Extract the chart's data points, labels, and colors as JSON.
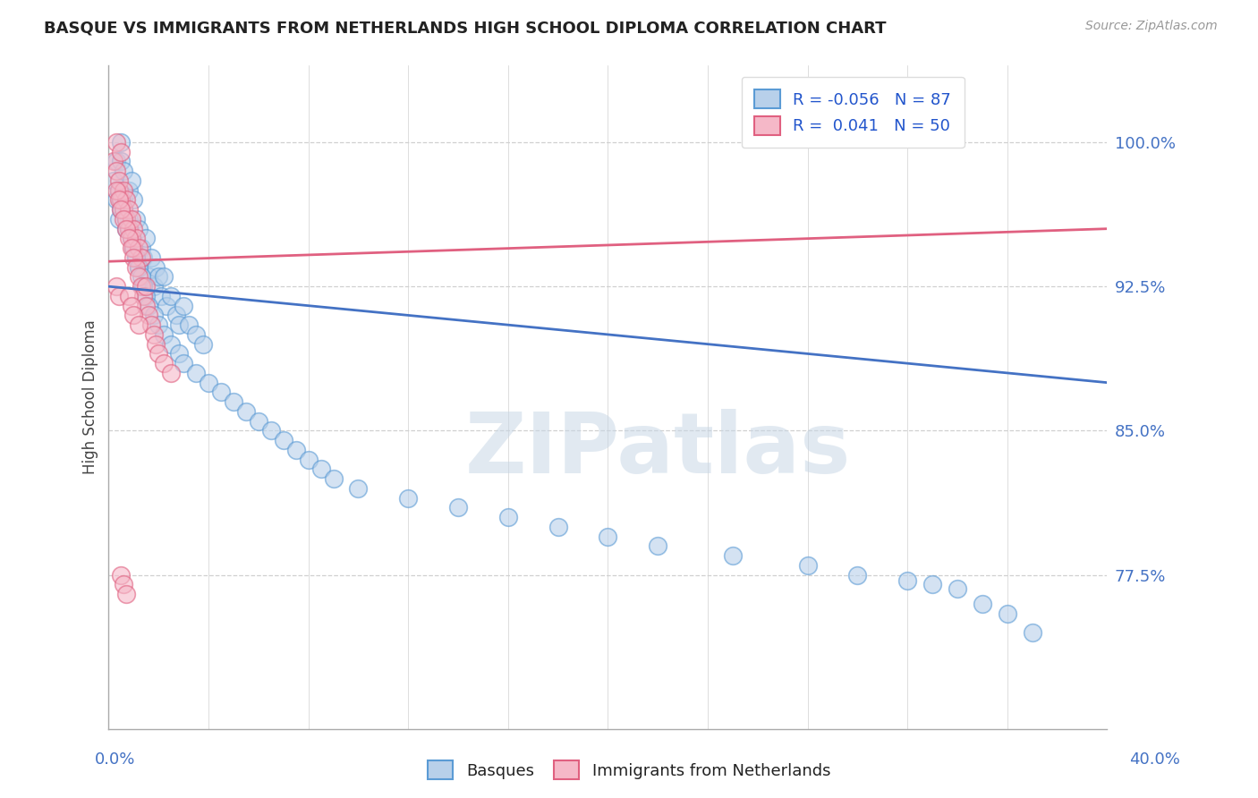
{
  "title": "BASQUE VS IMMIGRANTS FROM NETHERLANDS HIGH SCHOOL DIPLOMA CORRELATION CHART",
  "source": "Source: ZipAtlas.com",
  "ylabel": "High School Diploma",
  "yticks": [
    0.775,
    0.85,
    0.925,
    1.0
  ],
  "ytick_labels": [
    "77.5%",
    "85.0%",
    "92.5%",
    "100.0%"
  ],
  "xmin": 0.0,
  "xmax": 0.4,
  "ymin": 0.695,
  "ymax": 1.04,
  "blue_R": -0.056,
  "blue_N": 87,
  "pink_R": 0.041,
  "pink_N": 50,
  "blue_face_color": "#b8d0ea",
  "pink_face_color": "#f5b8c8",
  "blue_edge_color": "#5b9bd5",
  "pink_edge_color": "#e06080",
  "blue_line_color": "#4472c4",
  "pink_line_color": "#e06080",
  "blue_label": "Basques",
  "pink_label": "Immigrants from Netherlands",
  "watermark": "ZIPatlas",
  "grid_color": "#d0d0d0",
  "title_color": "#222222",
  "axis_tick_color": "#4472c4",
  "ylabel_color": "#444444",
  "legend_color": "#2255cc",
  "blue_scatter_x": [
    0.002,
    0.003,
    0.003,
    0.004,
    0.004,
    0.005,
    0.005,
    0.005,
    0.006,
    0.006,
    0.007,
    0.007,
    0.008,
    0.008,
    0.009,
    0.009,
    0.01,
    0.01,
    0.011,
    0.011,
    0.012,
    0.012,
    0.013,
    0.014,
    0.015,
    0.016,
    0.017,
    0.018,
    0.019,
    0.02,
    0.021,
    0.022,
    0.023,
    0.025,
    0.027,
    0.028,
    0.03,
    0.032,
    0.035,
    0.038,
    0.004,
    0.005,
    0.006,
    0.007,
    0.008,
    0.009,
    0.01,
    0.011,
    0.012,
    0.013,
    0.014,
    0.015,
    0.016,
    0.018,
    0.02,
    0.022,
    0.025,
    0.028,
    0.03,
    0.035,
    0.04,
    0.045,
    0.05,
    0.055,
    0.06,
    0.065,
    0.07,
    0.075,
    0.08,
    0.085,
    0.09,
    0.1,
    0.12,
    0.14,
    0.16,
    0.18,
    0.2,
    0.22,
    0.25,
    0.28,
    0.3,
    0.32,
    0.33,
    0.34,
    0.35,
    0.36,
    0.37
  ],
  "blue_scatter_y": [
    0.98,
    0.97,
    0.99,
    0.96,
    0.975,
    0.99,
    1.0,
    0.965,
    0.985,
    0.97,
    0.96,
    0.955,
    0.975,
    0.96,
    0.98,
    0.95,
    0.97,
    0.945,
    0.96,
    0.94,
    0.955,
    0.935,
    0.945,
    0.94,
    0.95,
    0.93,
    0.94,
    0.925,
    0.935,
    0.93,
    0.92,
    0.93,
    0.915,
    0.92,
    0.91,
    0.905,
    0.915,
    0.905,
    0.9,
    0.895,
    0.975,
    0.97,
    0.965,
    0.96,
    0.955,
    0.95,
    0.945,
    0.94,
    0.935,
    0.93,
    0.925,
    0.92,
    0.915,
    0.91,
    0.905,
    0.9,
    0.895,
    0.89,
    0.885,
    0.88,
    0.875,
    0.87,
    0.865,
    0.86,
    0.855,
    0.85,
    0.845,
    0.84,
    0.835,
    0.83,
    0.825,
    0.82,
    0.815,
    0.81,
    0.805,
    0.8,
    0.795,
    0.79,
    0.785,
    0.78,
    0.775,
    0.772,
    0.77,
    0.768,
    0.76,
    0.755,
    0.745
  ],
  "pink_scatter_x": [
    0.002,
    0.003,
    0.003,
    0.004,
    0.004,
    0.005,
    0.005,
    0.006,
    0.006,
    0.007,
    0.007,
    0.008,
    0.008,
    0.009,
    0.009,
    0.01,
    0.01,
    0.011,
    0.012,
    0.013,
    0.003,
    0.004,
    0.005,
    0.006,
    0.007,
    0.008,
    0.009,
    0.01,
    0.011,
    0.012,
    0.013,
    0.014,
    0.015,
    0.016,
    0.017,
    0.018,
    0.019,
    0.02,
    0.022,
    0.025,
    0.003,
    0.004,
    0.005,
    0.006,
    0.007,
    0.008,
    0.009,
    0.01,
    0.012,
    0.015
  ],
  "pink_scatter_y": [
    0.99,
    0.985,
    1.0,
    0.975,
    0.98,
    0.995,
    0.97,
    0.975,
    0.965,
    0.97,
    0.96,
    0.965,
    0.955,
    0.96,
    0.95,
    0.955,
    0.945,
    0.95,
    0.945,
    0.94,
    0.975,
    0.97,
    0.965,
    0.96,
    0.955,
    0.95,
    0.945,
    0.94,
    0.935,
    0.93,
    0.925,
    0.92,
    0.915,
    0.91,
    0.905,
    0.9,
    0.895,
    0.89,
    0.885,
    0.88,
    0.925,
    0.92,
    0.775,
    0.77,
    0.765,
    0.92,
    0.915,
    0.91,
    0.905,
    0.925
  ],
  "blue_trend_x0": 0.0,
  "blue_trend_y0": 0.925,
  "blue_trend_x1": 0.4,
  "blue_trend_y1": 0.875,
  "pink_trend_x0": 0.0,
  "pink_trend_y0": 0.938,
  "pink_trend_x1": 0.4,
  "pink_trend_y1": 0.955
}
